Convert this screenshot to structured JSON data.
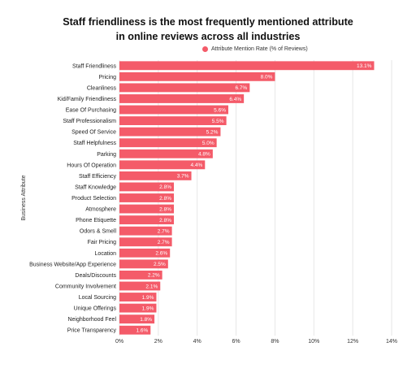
{
  "chart_data": {
    "type": "bar",
    "orientation": "horizontal",
    "title_line1": "Staff friendliness is the most frequently mentioned attribute",
    "title_line2": "in online reviews across all industries",
    "ylabel": "Business Attribute",
    "xlabel": "",
    "legend": "Attribute Mention Rate (% of Reviews)",
    "legend_position": "top-right",
    "bar_color": "#f45b69",
    "xlim": [
      0,
      14
    ],
    "xticks": [
      "0%",
      "2%",
      "4%",
      "6%",
      "8%",
      "10%",
      "12%",
      "14%"
    ],
    "grid": true,
    "categories": [
      "Staff Friendliness",
      "Pricing",
      "Cleanliness",
      "Kid/Family Friendliness",
      "Ease Of Purchasing",
      "Staff Professionalism",
      "Speed Of Service",
      "Staff Helpfulness",
      "Parking",
      "Hours Of Operation",
      "Staff Efficiency",
      "Staff Knowledge",
      "Product Selection",
      "Atmosphere",
      "Phone Etiquette",
      "Odors & Smell",
      "Fair Pricing",
      "Location",
      "Business Website/App Experience",
      "Deals/Discounts",
      "Community Involvement",
      "Local Sourcing",
      "Unique Offerings",
      "Neighborhood Feel",
      "Price Transparency"
    ],
    "values": [
      13.1,
      8.0,
      6.7,
      6.4,
      5.6,
      5.5,
      5.2,
      5.0,
      4.8,
      4.4,
      3.7,
      2.8,
      2.8,
      2.8,
      2.8,
      2.7,
      2.7,
      2.6,
      2.5,
      2.2,
      2.1,
      1.9,
      1.9,
      1.8,
      1.6
    ],
    "value_labels": [
      "13.1%",
      "8.0%",
      "6.7%",
      "6.4%",
      "5.6%",
      "5.5%",
      "5.2%",
      "5.0%",
      "4.8%",
      "4.4%",
      "3.7%",
      "2.8%",
      "2.8%",
      "2.8%",
      "2.8%",
      "2.7%",
      "2.7%",
      "2.6%",
      "2.5%",
      "2.2%",
      "2.1%",
      "1.9%",
      "1.9%",
      "1.8%",
      "1.6%"
    ]
  }
}
